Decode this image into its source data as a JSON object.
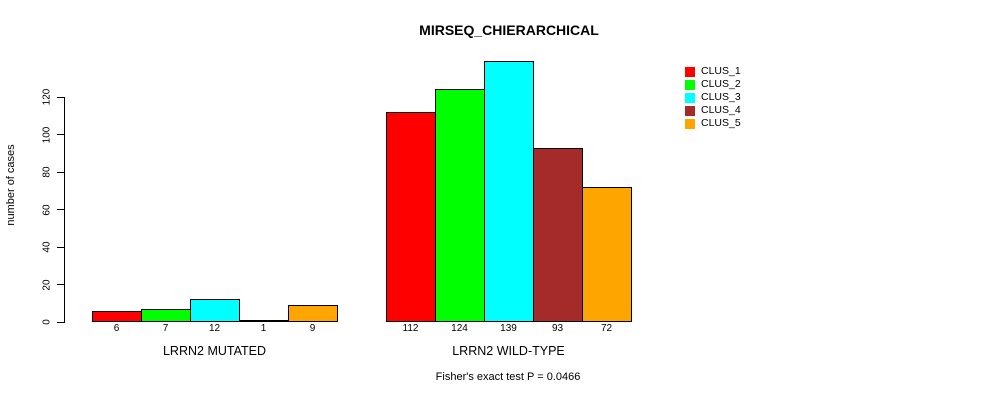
{
  "chart_data": {
    "type": "bar",
    "title": "MIRSEQ_CHIERARCHICAL",
    "ylabel": "number of cases",
    "xlabel": "",
    "ylim": [
      0,
      139
    ],
    "yticks": [
      0,
      20,
      40,
      60,
      80,
      100,
      120
    ],
    "grid": false,
    "legend_position": "right",
    "clusters": [
      "CLUS_1",
      "CLUS_2",
      "CLUS_3",
      "CLUS_4",
      "CLUS_5"
    ],
    "colors": [
      "#ff0000",
      "#00ff00",
      "#00ffff",
      "#a52a2a",
      "#ffa500"
    ],
    "groups": [
      {
        "label": "LRRN2 MUTATED",
        "values": [
          6,
          7,
          12,
          1,
          9
        ]
      },
      {
        "label": "LRRN2 WILD-TYPE",
        "values": [
          112,
          124,
          139,
          93,
          72
        ]
      }
    ],
    "annotation": "Fisher's exact test P = 0.0466"
  }
}
